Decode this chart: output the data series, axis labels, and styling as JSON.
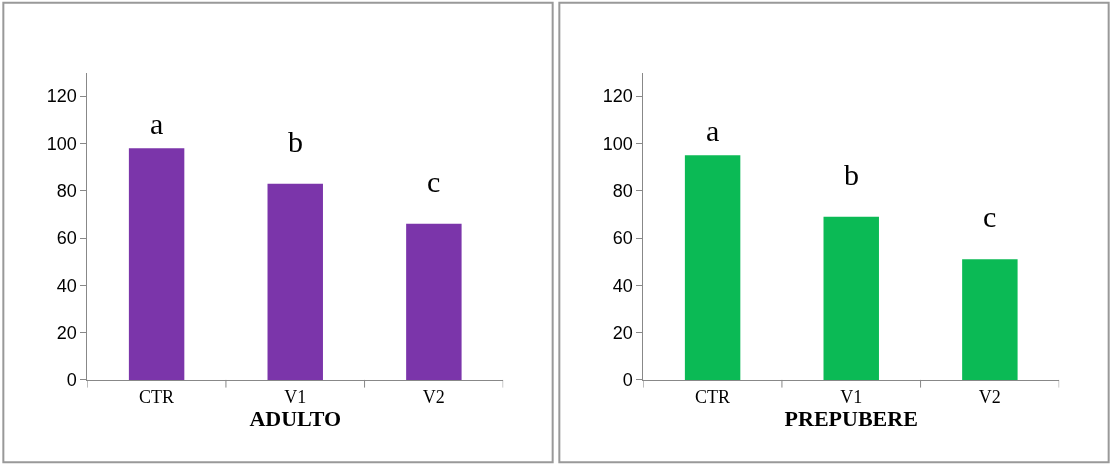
{
  "chart_data": [
    {
      "type": "bar",
      "xlabel": "ADULTO",
      "categories": [
        "CTR",
        "V1",
        "V2"
      ],
      "values": [
        98,
        83,
        66
      ],
      "color": "#7b35aa",
      "ylim": [
        0,
        130
      ],
      "yticks": [
        0,
        20,
        40,
        60,
        80,
        100,
        120
      ],
      "annotations": [
        {
          "text": "a",
          "x": "CTR",
          "y": 98
        },
        {
          "text": "b",
          "x": "V1",
          "y": 83
        },
        {
          "text": "c",
          "x": "V2",
          "y": 66
        }
      ]
    },
    {
      "type": "bar",
      "xlabel": "PREPUBERE",
      "categories": [
        "CTR",
        "V1",
        "V2"
      ],
      "values": [
        95,
        69,
        51
      ],
      "color": "#0bba55",
      "ylim": [
        0,
        130
      ],
      "yticks": [
        0,
        20,
        40,
        60,
        80,
        100,
        120
      ],
      "annotations": [
        {
          "text": "a",
          "x": "CTR",
          "y": 95
        },
        {
          "text": "b",
          "x": "V1",
          "y": 69
        },
        {
          "text": "c",
          "x": "V2",
          "y": 51
        }
      ]
    }
  ]
}
